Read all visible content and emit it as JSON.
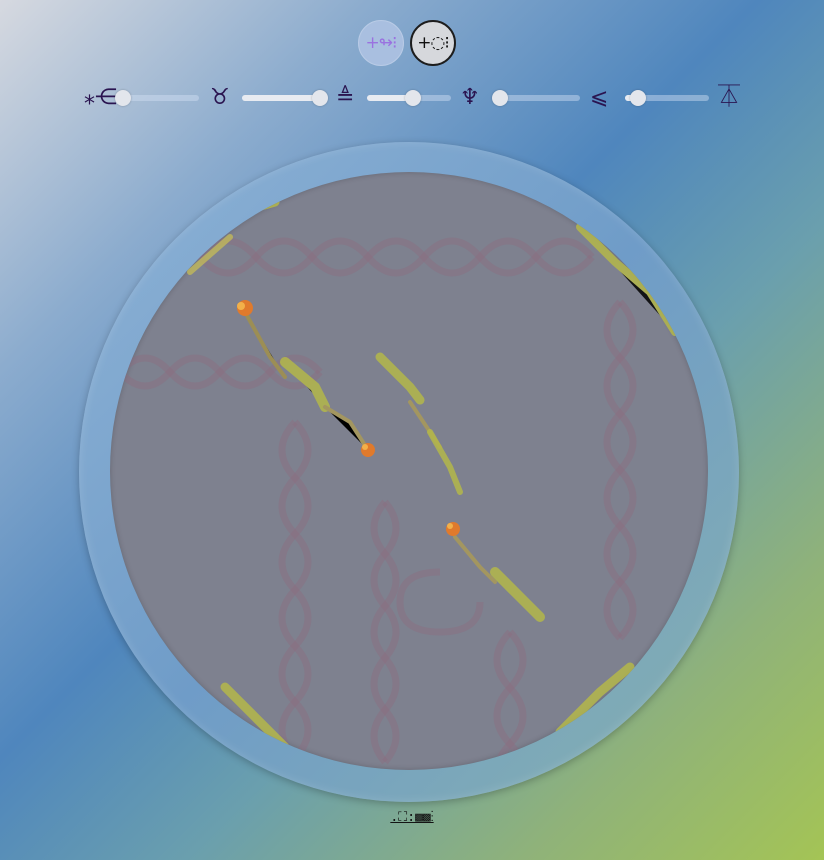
{
  "mode_buttons": [
    {
      "label": "+↬⁝",
      "active": true
    },
    {
      "label": "+◌⁝",
      "active": false
    }
  ],
  "sliders": [
    {
      "glyph": "⁎⋲",
      "value": 0.0
    },
    {
      "glyph": "♉︎",
      "value": 1.0
    },
    {
      "glyph": "≜",
      "value": 0.55
    },
    {
      "glyph": "♆",
      "value": 0.0
    },
    {
      "glyph": "⩽",
      "value": 0.15
    }
  ],
  "end_glyph": "⏄",
  "footer": {
    "label": ".⛶:▩▩⁝"
  },
  "colors": {
    "background_start": "#d6d9e0",
    "background_end": "#a4c455",
    "dish_rim": "#7aa3cc",
    "dish_medium": "#7e818f",
    "strand": "#8b6d80",
    "growth": "#b4b84a",
    "bloom": "#e07a2c",
    "glyph": "#2a1450"
  }
}
